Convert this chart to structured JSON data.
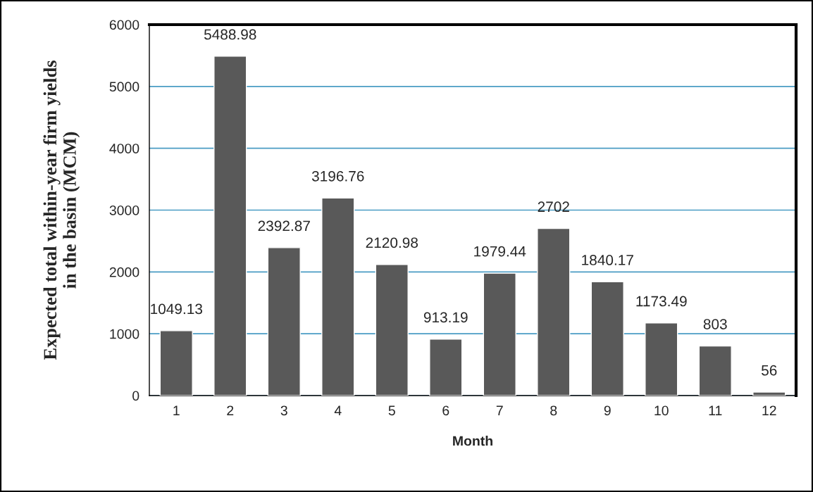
{
  "chart_data": {
    "type": "bar",
    "xlabel": "Month",
    "ylabel": "Expected total within-year firm yields\nin the basin (MCM)",
    "categories": [
      "1",
      "2",
      "3",
      "4",
      "5",
      "6",
      "7",
      "8",
      "9",
      "10",
      "11",
      "12"
    ],
    "values": [
      1049.13,
      5488.98,
      2392.87,
      3196.76,
      2120.98,
      913.19,
      1979.44,
      2702,
      1840.17,
      1173.49,
      803,
      56
    ],
    "color": "#595959",
    "ylim": [
      0,
      6000
    ],
    "yticks": [
      0,
      1000,
      2000,
      3000,
      4000,
      5000,
      6000
    ],
    "grid": "y",
    "data_labels": true
  }
}
